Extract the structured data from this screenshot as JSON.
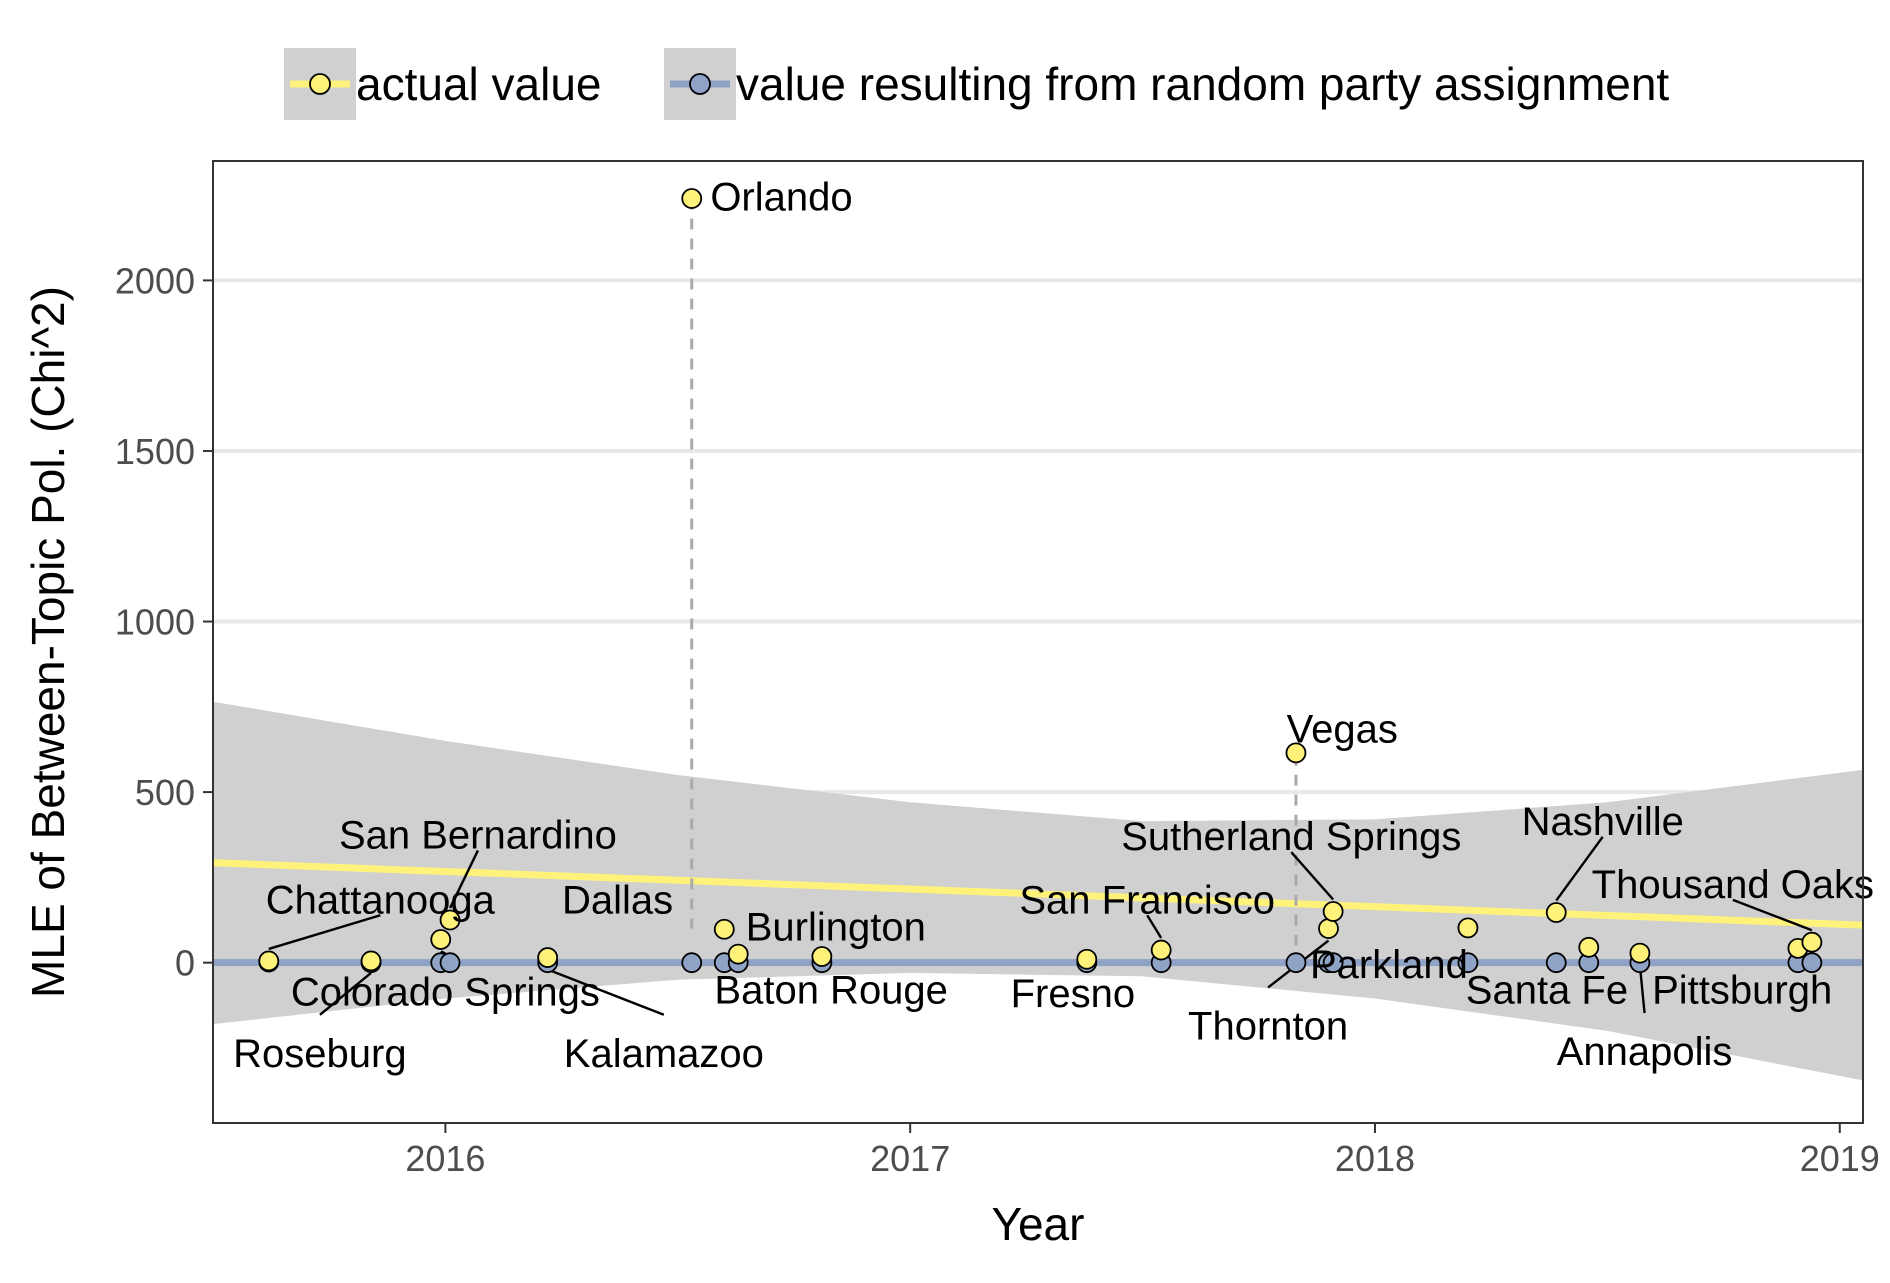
{
  "legend": {
    "actual": "actual value",
    "random": "value resulting from random party assignment"
  },
  "colors": {
    "actual": "#FFF27A",
    "actual_line": "#FFF27A",
    "random": "#8FA3C6",
    "random_line": "#8FA3C6",
    "ribbon": "#D0D0D0",
    "grid": "#E8E8E8",
    "reference_line": "#AAAAAA"
  },
  "chart_data": {
    "type": "scatter",
    "title": "",
    "xlabel": "Year",
    "ylabel": "MLE of Between-Topic Pol. (Chi^2)",
    "xlim": [
      2015.5,
      2019.05
    ],
    "ylim": [
      -470,
      2350
    ],
    "xticks": [
      2016,
      2017,
      2018,
      2019
    ],
    "xtick_labels": [
      "2016",
      "2017",
      "2018",
      "2019"
    ],
    "yticks": [
      0,
      500,
      1000,
      1500,
      2000
    ],
    "ytick_labels": [
      "0",
      "500",
      "1000",
      "1500",
      "2000"
    ],
    "grid": true,
    "legend_position": "top",
    "trend_actual": {
      "x": [
        2015.5,
        2019.05
      ],
      "y": [
        293,
        110
      ]
    },
    "trend_random": {
      "x": [
        2015.5,
        2019.05
      ],
      "y": [
        0,
        0
      ]
    },
    "ribbon": {
      "x": [
        2015.5,
        2016.0,
        2016.5,
        2017.0,
        2017.5,
        2018.0,
        2018.5,
        2019.05
      ],
      "upper": [
        765,
        650,
        550,
        470,
        415,
        420,
        470,
        565
      ],
      "lower": [
        -180,
        -105,
        -50,
        -30,
        -40,
        -105,
        -200,
        -345
      ]
    },
    "reference_lines": [
      {
        "x": 2016.53,
        "y_top": 2240
      },
      {
        "x": 2017.83,
        "y_top": 610
      }
    ],
    "series": [
      {
        "name": "actual value",
        "points": [
          {
            "x": 2015.62,
            "y": 5
          },
          {
            "x": 2015.84,
            "y": 5
          },
          {
            "x": 2015.99,
            "y": 68
          },
          {
            "x": 2016.01,
            "y": 125
          },
          {
            "x": 2016.22,
            "y": 15
          },
          {
            "x": 2016.53,
            "y": 2240
          },
          {
            "x": 2016.6,
            "y": 98
          },
          {
            "x": 2016.63,
            "y": 25
          },
          {
            "x": 2016.81,
            "y": 18
          },
          {
            "x": 2017.38,
            "y": 10
          },
          {
            "x": 2017.54,
            "y": 37
          },
          {
            "x": 2017.83,
            "y": 615
          },
          {
            "x": 2017.9,
            "y": 100
          },
          {
            "x": 2017.91,
            "y": 150
          },
          {
            "x": 2018.2,
            "y": 102
          },
          {
            "x": 2018.39,
            "y": 147
          },
          {
            "x": 2018.46,
            "y": 45
          },
          {
            "x": 2018.57,
            "y": 28
          },
          {
            "x": 2018.91,
            "y": 42
          },
          {
            "x": 2018.94,
            "y": 60
          }
        ]
      },
      {
        "name": "value resulting from random party assignment",
        "points": [
          {
            "x": 2015.62,
            "y": 2
          },
          {
            "x": 2015.84,
            "y": 0
          },
          {
            "x": 2015.99,
            "y": 0
          },
          {
            "x": 2016.01,
            "y": 0
          },
          {
            "x": 2016.22,
            "y": 0
          },
          {
            "x": 2016.53,
            "y": 0
          },
          {
            "x": 2016.6,
            "y": 0
          },
          {
            "x": 2016.63,
            "y": 0
          },
          {
            "x": 2016.81,
            "y": 0
          },
          {
            "x": 2017.38,
            "y": 0
          },
          {
            "x": 2017.54,
            "y": 0
          },
          {
            "x": 2017.83,
            "y": 0
          },
          {
            "x": 2017.9,
            "y": 0
          },
          {
            "x": 2017.91,
            "y": 0
          },
          {
            "x": 2018.2,
            "y": 0
          },
          {
            "x": 2018.39,
            "y": 0
          },
          {
            "x": 2018.46,
            "y": 0
          },
          {
            "x": 2018.57,
            "y": 0
          },
          {
            "x": 2018.91,
            "y": 0
          },
          {
            "x": 2018.94,
            "y": 0
          }
        ]
      }
    ],
    "annotations": [
      {
        "text": "Orlando",
        "x": 2016.53,
        "y": 2240,
        "lx": 2016.57,
        "ly": 2240,
        "anchor": "start",
        "leader": false
      },
      {
        "text": "Vegas",
        "x": 2017.83,
        "y": 615,
        "lx": 2017.81,
        "ly": 680,
        "anchor": "start",
        "leader": false
      },
      {
        "text": "San Bernardino",
        "x": 2016.01,
        "y": 125,
        "lx": 2016.07,
        "ly": 370,
        "anchor": "middle",
        "leader": true
      },
      {
        "text": "Chattanooga",
        "x": 2015.62,
        "y": 5,
        "lx": 2015.86,
        "ly": 180,
        "anchor": "middle",
        "leader": true
      },
      {
        "text": "Colorado Springs",
        "x": 2015.99,
        "y": 68,
        "lx": 2016.0,
        "ly": -90,
        "anchor": "middle",
        "leader": true
      },
      {
        "text": "Roseburg",
        "x": 2015.84,
        "y": 5,
        "lx": 2015.73,
        "ly": -270,
        "anchor": "middle",
        "leader": true
      },
      {
        "text": "Kalamazoo",
        "x": 2016.22,
        "y": 15,
        "lx": 2016.47,
        "ly": -270,
        "anchor": "middle",
        "leader": true
      },
      {
        "text": "Dallas",
        "x": 2016.6,
        "y": 98,
        "lx": 2016.49,
        "ly": 180,
        "anchor": "end",
        "leader": false
      },
      {
        "text": "Burlington",
        "x": 2016.81,
        "y": 18,
        "lx": 2016.84,
        "ly": 100,
        "anchor": "middle",
        "leader": false
      },
      {
        "text": "Baton Rouge",
        "x": 2016.63,
        "y": 25,
        "lx": 2016.83,
        "ly": -85,
        "anchor": "middle",
        "leader": false
      },
      {
        "text": "Fresno",
        "x": 2017.38,
        "y": 10,
        "lx": 2017.35,
        "ly": -95,
        "anchor": "middle",
        "leader": false
      },
      {
        "text": "San Francisco",
        "x": 2017.54,
        "y": 37,
        "lx": 2017.51,
        "ly": 180,
        "anchor": "middle",
        "leader": true
      },
      {
        "text": "Sutherland Springs",
        "x": 2017.91,
        "y": 150,
        "lx": 2017.82,
        "ly": 365,
        "anchor": "middle",
        "leader": true
      },
      {
        "text": "Parkland",
        "x": 2018.2,
        "y": 102,
        "lx": 2018.03,
        "ly": -10,
        "anchor": "middle",
        "leader": false
      },
      {
        "text": "Thornton",
        "x": 2017.9,
        "y": 100,
        "lx": 2017.77,
        "ly": -190,
        "anchor": "middle",
        "leader": true
      },
      {
        "text": "Nashville",
        "x": 2018.39,
        "y": 147,
        "lx": 2018.49,
        "ly": 410,
        "anchor": "middle",
        "leader": true
      },
      {
        "text": "Thousand Oaks",
        "x": 2018.94,
        "y": 60,
        "lx": 2018.77,
        "ly": 225,
        "anchor": "middle",
        "leader": true
      },
      {
        "text": "Santa Fe",
        "x": 2018.46,
        "y": 45,
        "lx": 2018.37,
        "ly": -85,
        "anchor": "middle",
        "leader": false
      },
      {
        "text": "Pittsburgh",
        "x": 2018.91,
        "y": 42,
        "lx": 2018.79,
        "ly": -85,
        "anchor": "middle",
        "leader": false
      },
      {
        "text": "Annapolis",
        "x": 2018.57,
        "y": 28,
        "lx": 2018.58,
        "ly": -265,
        "anchor": "middle",
        "leader": true
      }
    ]
  }
}
